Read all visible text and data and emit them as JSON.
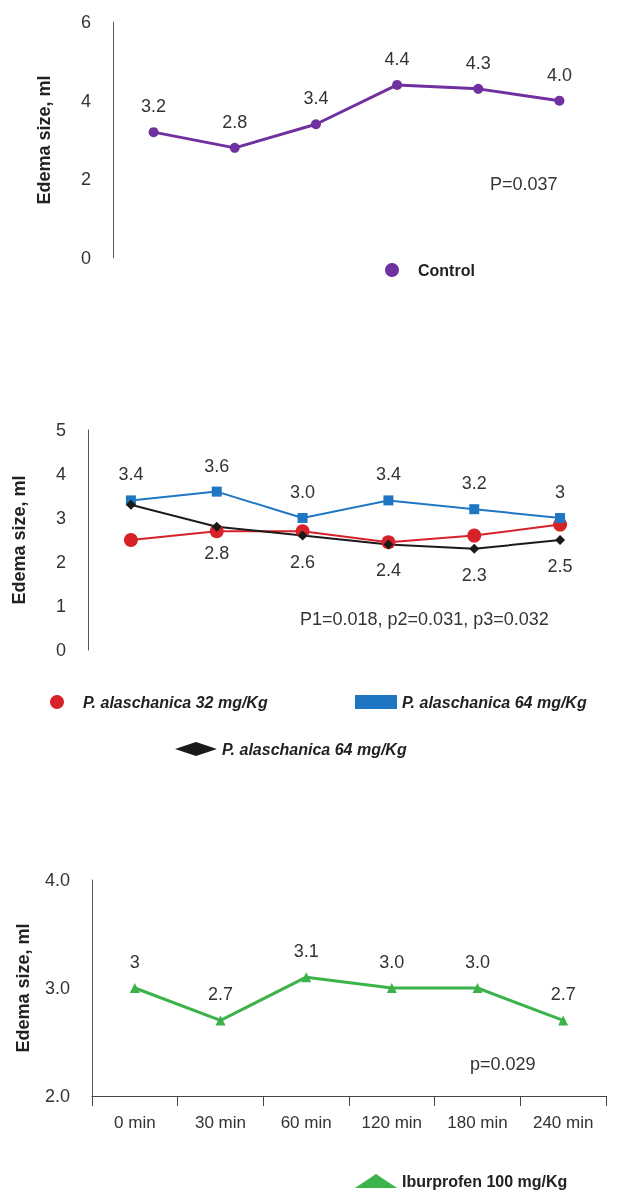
{
  "chart_data": [
    {
      "type": "line",
      "ylabel": "Edema size, ml",
      "categories": [
        null,
        null,
        null,
        null,
        null,
        null
      ],
      "ylim": [
        0,
        6
      ],
      "yticks": [
        0,
        2,
        4,
        6
      ],
      "tick_labels": "y",
      "legend": "bottom",
      "marker": "circle",
      "annotations": [
        "P=0.037"
      ],
      "series": [
        {
          "name": "Control",
          "color": "#7030a0",
          "values": [
            3.2,
            2.8,
            3.4,
            4.4,
            4.3,
            4.0
          ],
          "value_labels": [
            "3.2",
            "2.8",
            "3.4",
            "4.4",
            "4.3",
            "4.0"
          ]
        }
      ]
    },
    {
      "type": "line",
      "ylabel": "Edema size, ml",
      "categories": [
        null,
        null,
        null,
        null,
        null,
        null
      ],
      "ylim": [
        0,
        5
      ],
      "yticks": [
        0,
        1,
        2,
        3,
        4,
        5
      ],
      "tick_labels": "y",
      "legend": "bottom",
      "annotations": [
        "P1=0.018, p2=0.031, p3=0.032"
      ],
      "series": [
        {
          "name": "P. alaschanica 32 mg/Kg",
          "color": "#d7222a",
          "marker": "circle",
          "values": [
            2.5,
            2.7,
            2.7,
            2.45,
            2.6,
            2.85
          ]
        },
        {
          "name": "P. alaschanica 64 mg/Kg",
          "color": "#1f77c4",
          "marker": "square",
          "values": [
            3.4,
            3.6,
            3.0,
            3.4,
            3.2,
            3.0
          ],
          "value_labels": [
            "3.4",
            "3.6",
            "3.0",
            "3.4",
            "3.2",
            "3"
          ]
        },
        {
          "name": "P. alaschanica 64 mg/Kg",
          "color": "#1a1a1a",
          "marker": "diamond",
          "values": [
            3.3,
            2.8,
            2.6,
            2.4,
            2.3,
            2.5
          ],
          "value_labels": [
            null,
            "2.8",
            "2.6",
            "2.4",
            "2.3",
            "2.5"
          ]
        }
      ]
    },
    {
      "type": "line",
      "ylabel": "Edema size, ml",
      "categories": [
        "0 min",
        "30 min",
        "60 min",
        "120 min",
        "180 min",
        "240 min"
      ],
      "ylim": [
        2,
        4
      ],
      "yticks": [
        {
          "value": 2,
          "label": "2.0"
        },
        {
          "value": 3,
          "label": "3.0"
        },
        {
          "value": 4,
          "label": "4.0"
        }
      ],
      "legend": "bottom right",
      "marker": "triangle",
      "annotations": [
        "p=0.029"
      ],
      "series": [
        {
          "name": "Iburprofen 100 mg/Kg",
          "color": "#3cb34a",
          "values": [
            3,
            2.7,
            3.1,
            3.0,
            3.0,
            2.7
          ],
          "value_labels": [
            "3",
            "2.7",
            "3.1",
            "3.0",
            "3.0",
            "2.7"
          ]
        }
      ]
    }
  ]
}
